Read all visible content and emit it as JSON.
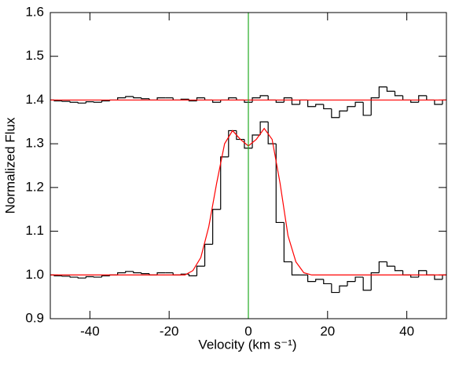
{
  "chart_data": {
    "type": "step",
    "x_label": "Velocity (km s⁻¹)",
    "y_label": "Normalized Flux",
    "x": [
      -50,
      -48,
      -46,
      -44,
      -42,
      -40,
      -38,
      -36,
      -34,
      -32,
      -30,
      -28,
      -26,
      -24,
      -22,
      -20,
      -18,
      -16,
      -14,
      -12,
      -10,
      -8,
      -6,
      -4,
      -2,
      0,
      2,
      4,
      6,
      8,
      10,
      12,
      14,
      16,
      18,
      20,
      22,
      24,
      26,
      28,
      30,
      32,
      34,
      36,
      38,
      40,
      42,
      44,
      46,
      48,
      50
    ],
    "series": [
      {
        "color": "#000000",
        "kind": "step",
        "values": [
          1.0,
          0.998,
          0.997,
          0.995,
          0.993,
          0.996,
          0.995,
          0.998,
          1.0,
          1.005,
          1.008,
          1.005,
          1.003,
          1.0,
          1.005,
          1.005,
          1.0,
          1.002,
          0.998,
          1.02,
          1.07,
          1.15,
          1.27,
          1.33,
          1.31,
          1.29,
          1.32,
          1.35,
          1.3,
          1.12,
          1.03,
          1.0,
          1.0,
          0.985,
          0.99,
          0.98,
          0.96,
          0.975,
          0.985,
          0.995,
          0.965,
          1.005,
          1.03,
          1.02,
          1.01,
          1.0,
          0.995,
          1.01,
          1.0,
          0.99,
          1.0
        ]
      },
      {
        "color": "#000000",
        "kind": "step",
        "values": [
          1.4,
          1.398,
          1.397,
          1.395,
          1.393,
          1.396,
          1.395,
          1.398,
          1.4,
          1.405,
          1.408,
          1.405,
          1.403,
          1.4,
          1.405,
          1.405,
          1.4,
          1.402,
          1.398,
          1.405,
          1.4,
          1.395,
          1.4,
          1.405,
          1.4,
          1.395,
          1.405,
          1.41,
          1.4,
          1.395,
          1.405,
          1.39,
          1.4,
          1.385,
          1.39,
          1.38,
          1.36,
          1.375,
          1.385,
          1.395,
          1.365,
          1.405,
          1.43,
          1.42,
          1.41,
          1.4,
          1.395,
          1.41,
          1.4,
          1.39,
          1.4
        ]
      },
      {
        "color": "#ff0000",
        "kind": "line",
        "values": [
          1.0,
          1.0,
          1.0,
          1.0,
          1.0,
          1.0,
          1.0,
          1.0,
          1.0,
          1.0,
          1.0,
          1.0,
          1.0,
          1.0,
          1.0,
          1.0,
          1.0,
          1.0,
          1.01,
          1.04,
          1.11,
          1.21,
          1.3,
          1.33,
          1.31,
          1.295,
          1.31,
          1.335,
          1.31,
          1.21,
          1.09,
          1.03,
          1.005,
          1.0,
          1.0,
          1.0,
          1.0,
          1.0,
          1.0,
          1.0,
          1.0,
          1.0,
          1.0,
          1.0,
          1.0,
          1.0,
          1.0,
          1.0,
          1.0,
          1.0,
          1.0
        ]
      },
      {
        "color": "#ff0000",
        "kind": "line",
        "values": [
          1.4,
          1.4,
          1.4,
          1.4,
          1.4,
          1.4,
          1.4,
          1.4,
          1.4,
          1.4,
          1.4,
          1.4,
          1.4,
          1.4,
          1.4,
          1.4,
          1.4,
          1.4,
          1.4,
          1.4,
          1.4,
          1.4,
          1.4,
          1.4,
          1.4,
          1.4,
          1.4,
          1.4,
          1.4,
          1.4,
          1.4,
          1.4,
          1.4,
          1.4,
          1.4,
          1.4,
          1.4,
          1.4,
          1.4,
          1.4,
          1.4,
          1.4,
          1.4,
          1.4,
          1.4,
          1.4,
          1.4,
          1.4,
          1.4,
          1.4,
          1.4
        ]
      }
    ],
    "vline": 0,
    "vline_color": "#22aa22",
    "xlim": [
      -50,
      50
    ],
    "xticks": [
      -40,
      -20,
      0,
      20,
      40
    ],
    "ylim": [
      0.9,
      1.6
    ],
    "yticks": [
      0.9,
      {
        "value": 1,
        "label": "1.0"
      },
      1.1,
      1.2,
      1.3,
      1.4,
      1.5,
      1.6
    ]
  }
}
